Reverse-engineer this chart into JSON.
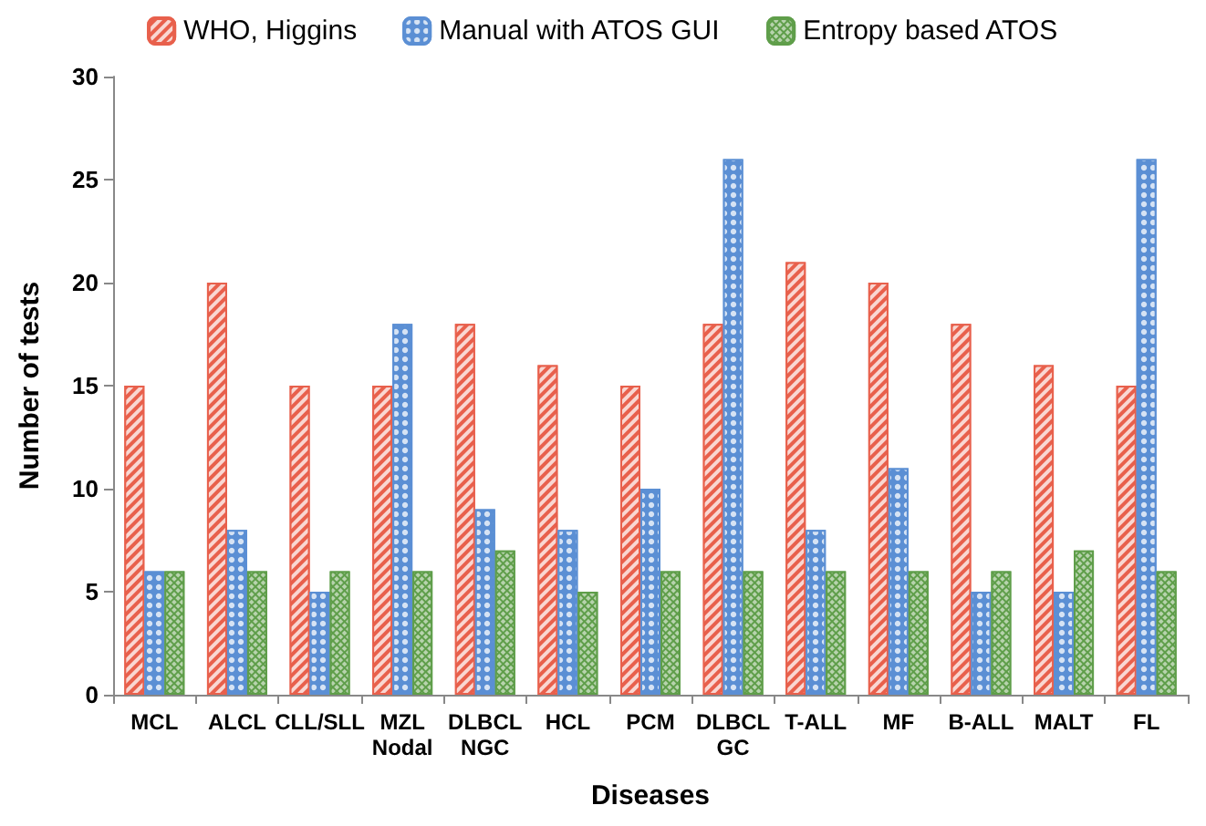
{
  "chart_data": {
    "type": "bar",
    "xlabel": "Diseases",
    "ylabel": "Number of tests",
    "categories": [
      "MCL",
      "ALCL",
      "CLL/SLL",
      "MZL\nNodal",
      "DLBCL\nNGC",
      "HCL",
      "PCM",
      "DLBCL\nGC",
      "T-ALL",
      "MF",
      "B-ALL",
      "MALT",
      "FL"
    ],
    "series": [
      {
        "name": "WHO, Higgins",
        "color": "#e8604c",
        "values": [
          15,
          20,
          15,
          15,
          18,
          16,
          15,
          18,
          21,
          20,
          18,
          16,
          15
        ]
      },
      {
        "name": "Manual with ATOS GUI",
        "color": "#5b8fd4",
        "values": [
          6,
          8,
          5,
          18,
          9,
          8,
          10,
          26,
          8,
          11,
          5,
          5,
          26
        ]
      },
      {
        "name": "Entropy based ATOS",
        "color": "#5f9e4a",
        "values": [
          6,
          6,
          6,
          6,
          7,
          5,
          6,
          6,
          6,
          6,
          6,
          7,
          6
        ]
      }
    ],
    "ylim": [
      0,
      30
    ],
    "yticks": [
      0,
      5,
      10,
      15,
      20,
      25,
      30
    ],
    "grid": false,
    "legend": "top"
  }
}
